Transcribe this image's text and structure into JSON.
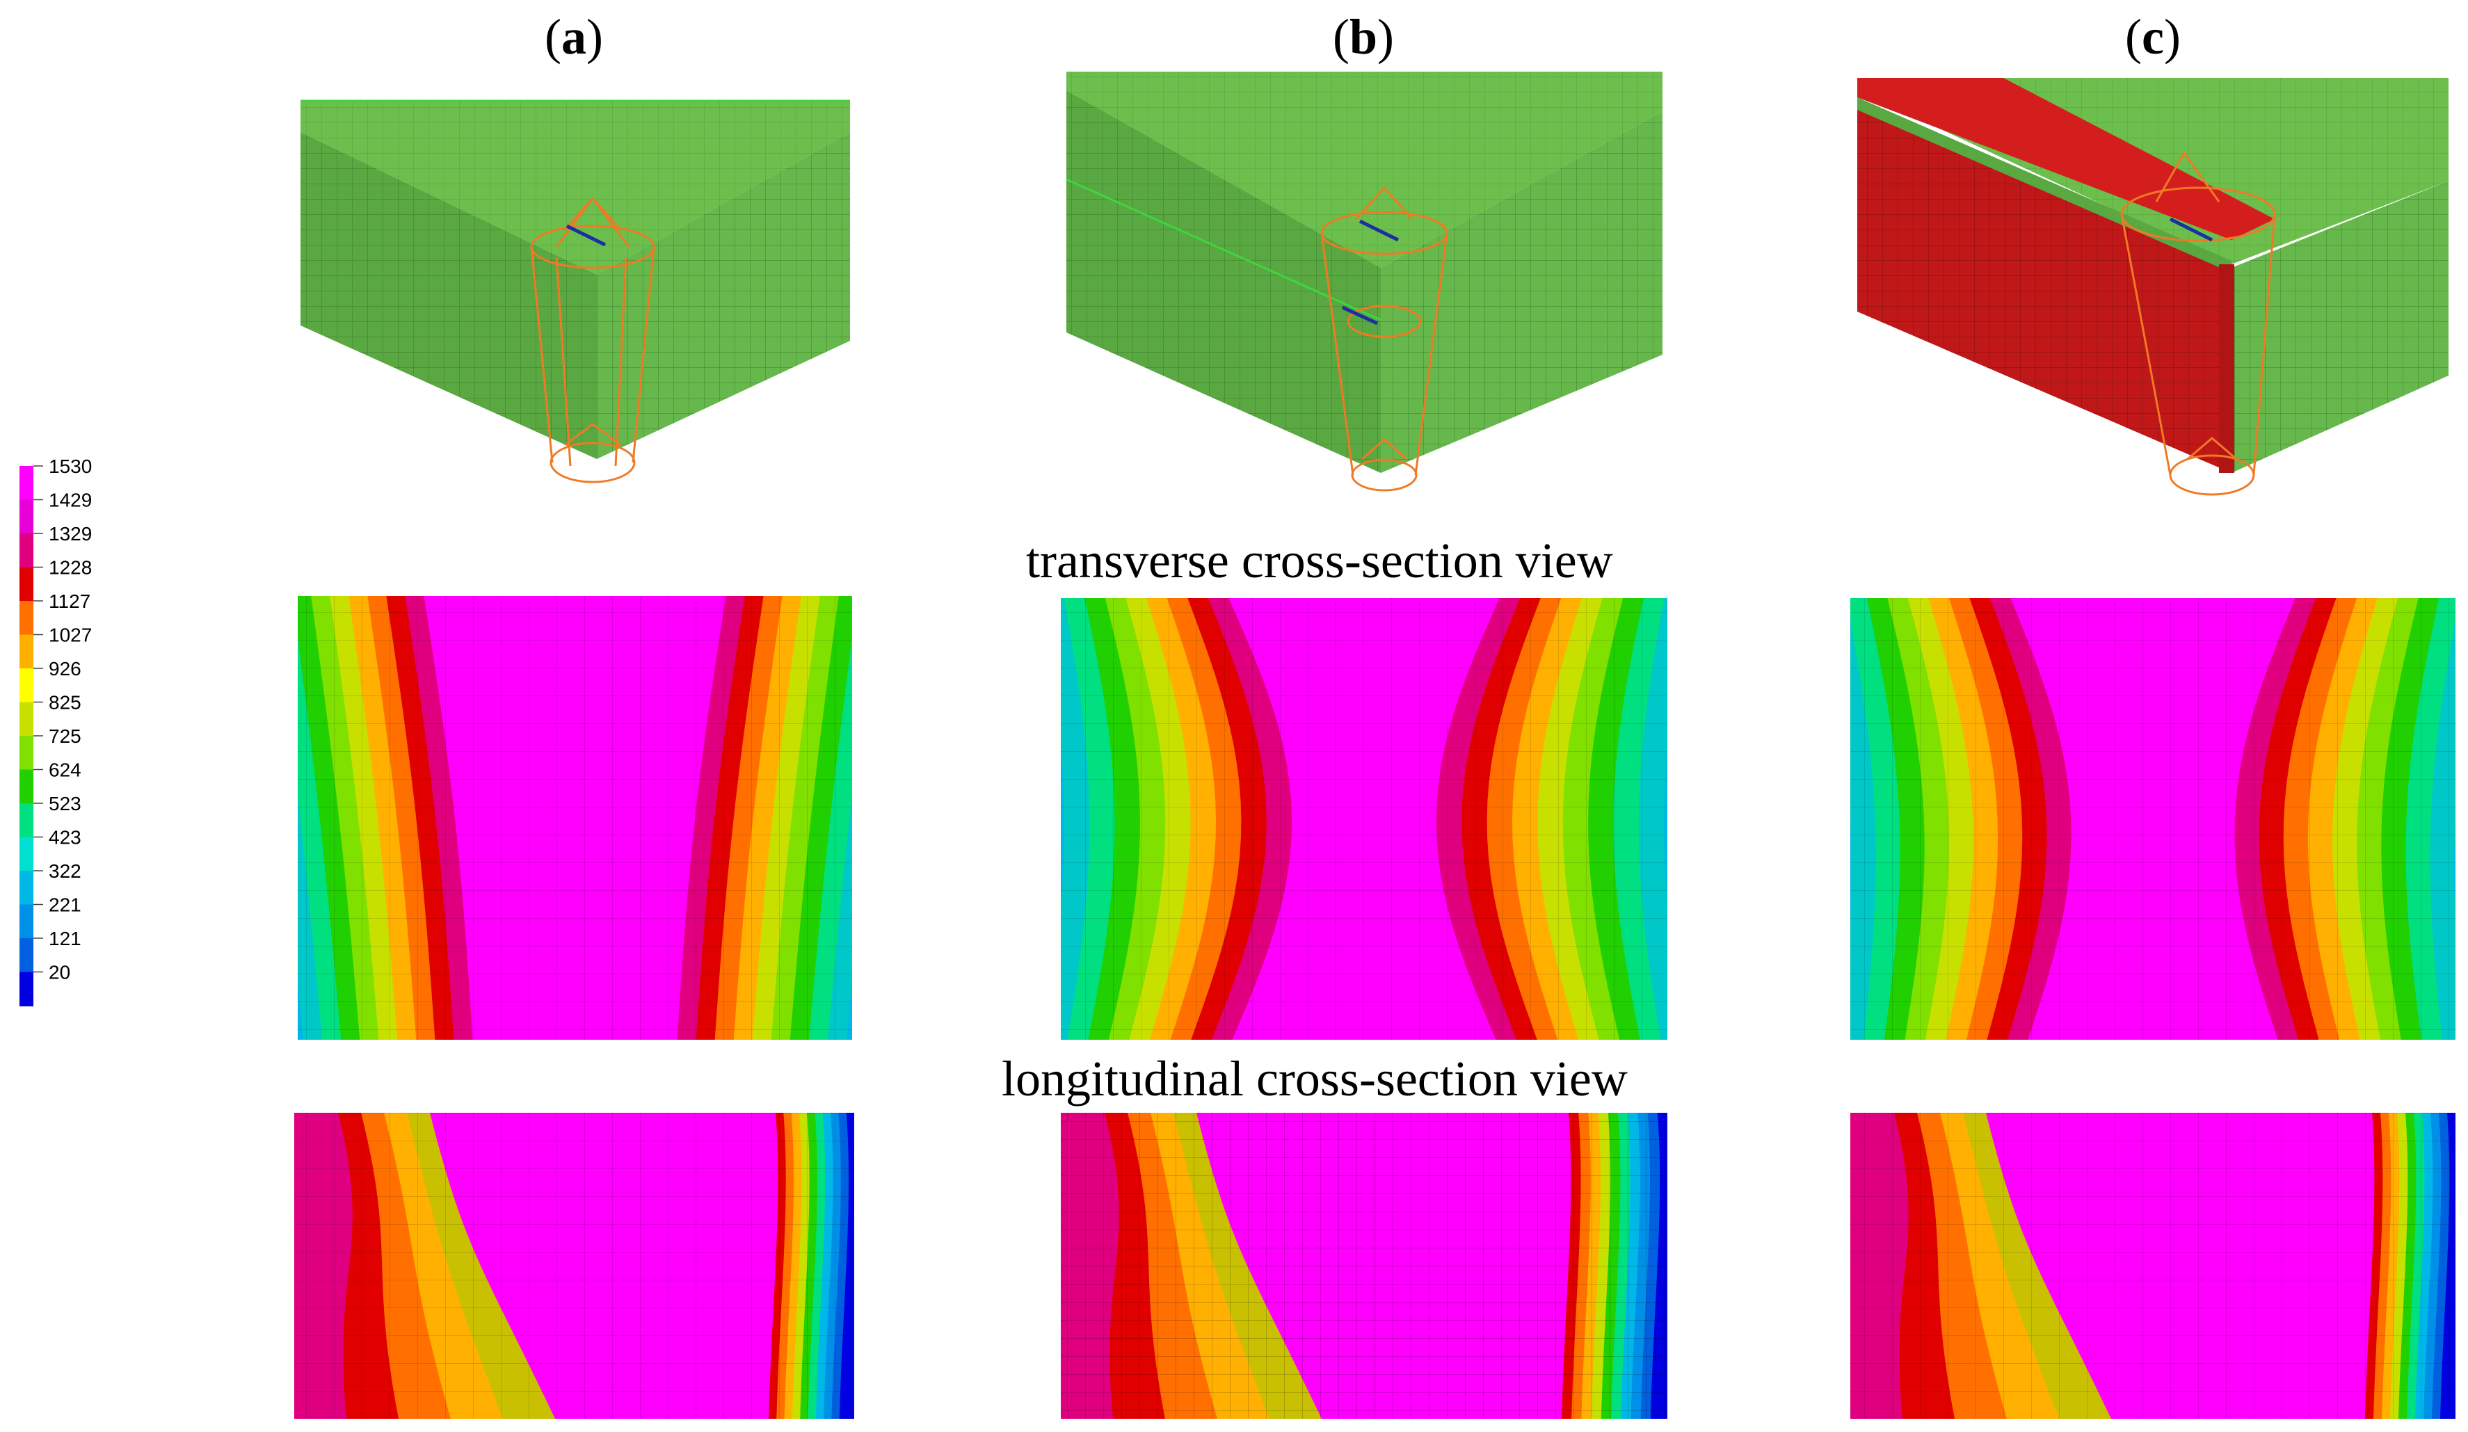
{
  "panel_labels": [
    {
      "open": "(",
      "letter": "a",
      "close": ")"
    },
    {
      "open": "(",
      "letter": "b",
      "close": ")"
    },
    {
      "open": "(",
      "letter": "c",
      "close": ")"
    }
  ],
  "section_titles": {
    "transverse": "transverse cross-section view",
    "longitudinal": "longitudinal cross-section view"
  },
  "legend": {
    "values": [
      "1530",
      "1429",
      "1329",
      "1228",
      "1127",
      "1027",
      "926",
      "825",
      "725",
      "624",
      "523",
      "423",
      "322",
      "221",
      "121",
      "20"
    ],
    "colors": [
      "#ff00ff",
      "#e800d8",
      "#e0007f",
      "#e00000",
      "#ff7000",
      "#ffb000",
      "#ffff00",
      "#c8e000",
      "#80e000",
      "#20d000",
      "#00e080",
      "#00e0d0",
      "#00b8e8",
      "#0090e8",
      "#0060e0",
      "#0000e0"
    ]
  },
  "colors": {
    "mesh_green": "#6cbf4c",
    "mesh_green_dark": "#4f9a3a",
    "weld_red": "#cc1a1a",
    "heat_source": "#f07a24",
    "melt": "#cc00cc"
  }
}
